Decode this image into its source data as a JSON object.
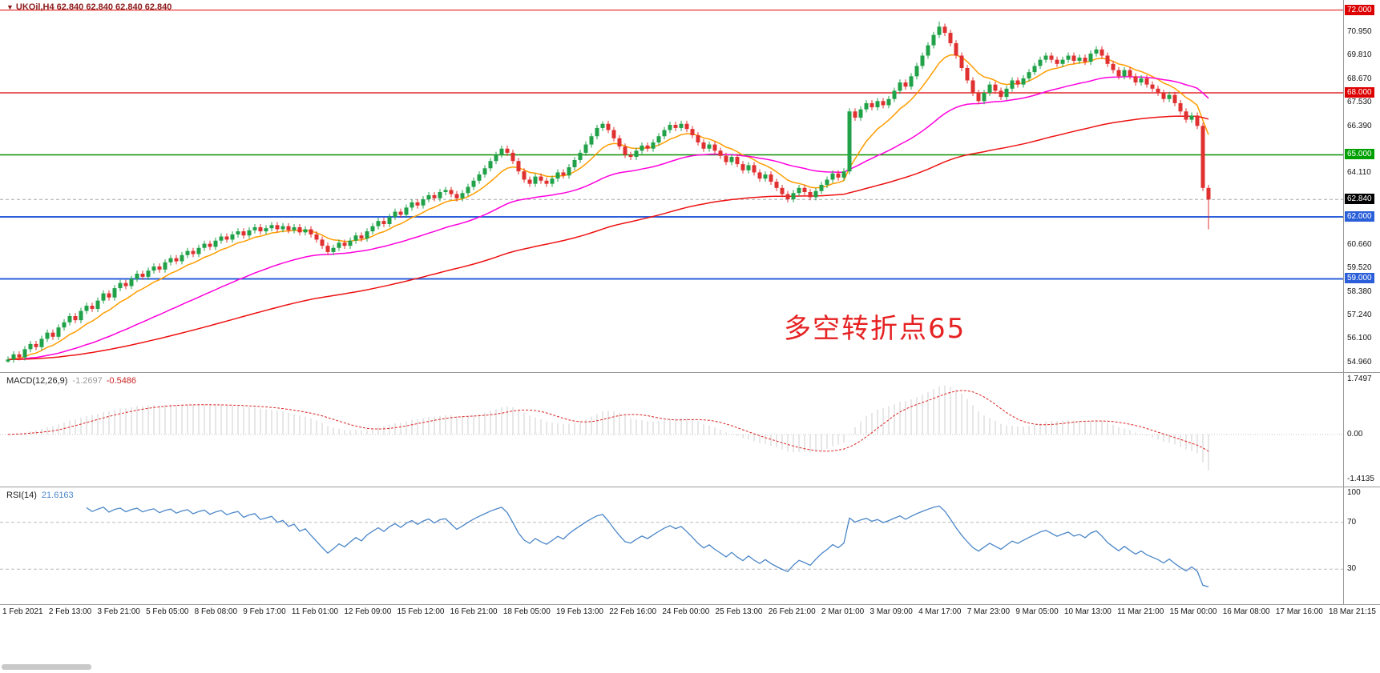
{
  "window": {
    "title": "UKOil H4 chart"
  },
  "header": {
    "symbol_marker": "▼",
    "symbol_line": "UKOil,H4  62.840 62.840 62.840 62.840"
  },
  "annotation": {
    "text": "多空转折点65",
    "color": "#e62222"
  },
  "colors": {
    "up": "#21a249",
    "down": "#e03030",
    "bg": "#ffffff",
    "axis_text": "#151515",
    "separator": "#9a9a9a"
  },
  "price_scale": {
    "ticks": [
      {
        "label": "70.950",
        "price": 70.95
      },
      {
        "label": "69.810",
        "price": 69.81
      },
      {
        "label": "68.670",
        "price": 68.67
      },
      {
        "label": "67.530",
        "price": 67.53
      },
      {
        "label": "66.390",
        "price": 66.39
      },
      {
        "label": "64.110",
        "price": 64.11
      },
      {
        "label": "60.660",
        "price": 60.66
      },
      {
        "label": "59.520",
        "price": 59.52
      },
      {
        "label": "58.380",
        "price": 58.38
      },
      {
        "label": "57.240",
        "price": 57.24
      },
      {
        "label": "56.100",
        "price": 56.1
      },
      {
        "label": "54.960",
        "price": 54.96
      }
    ],
    "badges": [
      {
        "label": "72.000",
        "price": 72.0,
        "bg": "#dd0000"
      },
      {
        "label": "68.000",
        "price": 68.0,
        "bg": "#dd0000"
      },
      {
        "label": "65.000",
        "price": 65.0,
        "bg": "#00a000"
      },
      {
        "label": "62.840",
        "price": 62.84,
        "bg": "#000000"
      },
      {
        "label": "62.000",
        "price": 62.0,
        "bg": "#2b5fd9"
      },
      {
        "label": "59.000",
        "price": 59.0,
        "bg": "#2b5fd9"
      }
    ]
  },
  "hlines": [
    {
      "price": 72.0,
      "color": "#dd0000",
      "width": 1
    },
    {
      "price": 68.0,
      "color": "#dd0000",
      "width": 1.2
    },
    {
      "price": 65.0,
      "color": "#0a9000",
      "width": 1.5
    },
    {
      "price": 62.84,
      "color": "#ababab",
      "width": 1,
      "dash": "4 3"
    },
    {
      "price": 62.0,
      "color": "#2b5fd9",
      "width": 2
    },
    {
      "price": 59.0,
      "color": "#2b5fd9",
      "width": 2
    }
  ],
  "chart_data": {
    "type": "candlestick",
    "symbol": "UKOil",
    "timeframe": "H4",
    "current_price": 62.84,
    "price_range": [
      54.49,
      72.49
    ],
    "first_open": 55.0,
    "default_wick": 0.15,
    "wick_overrides": {
      "0": {
        "l": 54.95
      },
      "166": {
        "h": 71.45
      },
      "106": {
        "h": 66.62
      },
      "214": {
        "l": 61.4
      }
    },
    "closes": [
      55.1,
      55.35,
      55.2,
      55.6,
      55.85,
      55.7,
      56.1,
      56.4,
      56.2,
      56.65,
      56.9,
      57.2,
      57.0,
      57.45,
      57.7,
      57.55,
      57.95,
      58.3,
      58.1,
      58.55,
      58.8,
      58.65,
      59.0,
      59.25,
      59.1,
      59.4,
      59.6,
      59.45,
      59.8,
      60.0,
      59.85,
      60.15,
      60.35,
      60.2,
      60.5,
      60.7,
      60.55,
      60.85,
      61.05,
      60.9,
      61.15,
      61.3,
      61.1,
      61.35,
      61.5,
      61.3,
      61.45,
      61.6,
      61.4,
      61.55,
      61.35,
      61.5,
      61.25,
      61.4,
      61.15,
      60.9,
      60.6,
      60.3,
      60.5,
      60.75,
      60.6,
      60.85,
      61.1,
      60.95,
      61.3,
      61.55,
      61.8,
      61.65,
      62.0,
      62.25,
      62.1,
      62.45,
      62.7,
      62.55,
      62.85,
      63.05,
      62.9,
      63.2,
      63.3,
      63.1,
      62.9,
      63.15,
      63.45,
      63.75,
      64.05,
      64.35,
      64.7,
      65.0,
      65.3,
      65.1,
      64.7,
      64.2,
      63.8,
      63.6,
      63.95,
      63.75,
      63.6,
      63.85,
      64.15,
      64.0,
      64.4,
      64.75,
      65.1,
      65.5,
      65.9,
      66.3,
      66.5,
      66.2,
      65.8,
      65.4,
      65.0,
      64.9,
      65.2,
      65.45,
      65.3,
      65.6,
      65.9,
      66.2,
      66.45,
      66.3,
      66.5,
      66.25,
      65.95,
      65.6,
      65.3,
      65.5,
      65.2,
      64.95,
      64.65,
      64.9,
      64.55,
      64.25,
      64.5,
      64.15,
      63.85,
      64.05,
      63.7,
      63.4,
      63.1,
      62.85,
      63.15,
      63.4,
      63.2,
      62.95,
      63.25,
      63.55,
      63.8,
      64.1,
      63.9,
      64.2,
      67.1,
      66.8,
      67.2,
      67.5,
      67.3,
      67.6,
      67.4,
      67.7,
      68.1,
      68.5,
      68.3,
      68.8,
      69.3,
      69.8,
      70.3,
      70.8,
      71.2,
      70.9,
      70.4,
      69.8,
      69.2,
      68.6,
      68.0,
      67.6,
      68.0,
      68.4,
      68.1,
      67.8,
      68.2,
      68.6,
      68.4,
      68.7,
      69.0,
      69.3,
      69.6,
      69.8,
      69.6,
      69.4,
      69.6,
      69.8,
      69.55,
      69.7,
      69.5,
      69.9,
      70.1,
      69.8,
      69.4,
      69.1,
      68.8,
      69.1,
      68.8,
      68.5,
      68.7,
      68.4,
      68.2,
      68.0,
      67.7,
      67.9,
      67.5,
      67.1,
      66.7,
      66.9,
      66.4,
      63.4,
      62.84
    ],
    "ma": [
      {
        "name": "fast",
        "period": 10,
        "color": "#ff9d00"
      },
      {
        "name": "medium",
        "period": 40,
        "color": "#ff00dd"
      },
      {
        "name": "slow",
        "period": 110,
        "color": "#ee1111"
      }
    ],
    "macd": {
      "label": "MACD(12,26,9)",
      "fast": 12,
      "slow": 26,
      "signal": 9,
      "main_value": "-1.2697",
      "signal_value": "-0.5486",
      "range": [
        -1.65,
        1.95
      ],
      "axis": [
        {
          "label": "1.7497",
          "value": 1.7497
        },
        {
          "label": "0.00",
          "value": 0
        },
        {
          "label": "-1.4135",
          "value": -1.4135
        }
      ],
      "hist_color": "#cfcfcf",
      "signal_color": "#dd2222"
    },
    "rsi": {
      "label": "RSI(14)",
      "period": 14,
      "value": "21.6163",
      "levels": [
        70,
        30
      ],
      "axis": [
        {
          "label": "100",
          "value": 100
        },
        {
          "label": "70",
          "value": 70
        },
        {
          "label": "30",
          "value": 30
        }
      ],
      "color": "#4a86c8",
      "range": [
        0,
        100
      ]
    },
    "x_labels": [
      "1 Feb 2021",
      "2 Feb 13:00",
      "3 Feb 21:00",
      "5 Feb 05:00",
      "8 Feb 08:00",
      "9 Feb 17:00",
      "11 Feb 01:00",
      "12 Feb 09:00",
      "15 Feb 12:00",
      "16 Feb 21:00",
      "18 Feb 05:00",
      "19 Feb 13:00",
      "22 Feb 16:00",
      "24 Feb 00:00",
      "25 Feb 13:00",
      "26 Feb 21:00",
      "2 Mar 01:00",
      "3 Mar 09:00",
      "4 Mar 17:00",
      "7 Mar 23:00",
      "9 Mar 05:00",
      "10 Mar 13:00",
      "11 Mar 21:00",
      "15 Mar 00:00",
      "16 Mar 08:00",
      "17 Mar 16:00",
      "18 Mar 21:15"
    ]
  }
}
